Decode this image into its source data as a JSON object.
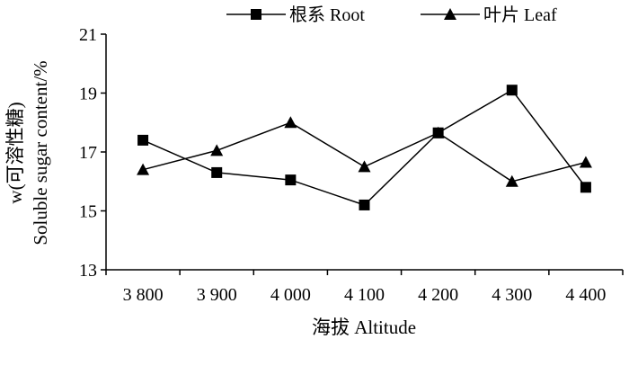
{
  "chart_data": {
    "type": "line",
    "title": "",
    "xlabel": "海拔 Altitude",
    "ylabel_line1": "w(可溶性糖)",
    "ylabel_line2": "Soluble sugar content/%",
    "categories": [
      "3 800",
      "3 900",
      "4 000",
      "4 100",
      "4 200",
      "4 300",
      "4 400"
    ],
    "ylim": [
      13,
      21
    ],
    "yticks": [
      13,
      15,
      17,
      19,
      21
    ],
    "ytick_labels": [
      "13",
      "15",
      "17",
      "19",
      "21"
    ],
    "grid": false,
    "legend_position": "top",
    "series": [
      {
        "name": "根系 Root",
        "marker": "square",
        "values": [
          17.4,
          16.3,
          16.05,
          15.2,
          17.65,
          19.1,
          15.8
        ]
      },
      {
        "name": "叶片 Leaf",
        "marker": "triangle",
        "values": [
          16.4,
          17.05,
          18.0,
          16.5,
          17.65,
          16.0,
          16.65
        ]
      }
    ],
    "line_color": "#000000"
  }
}
